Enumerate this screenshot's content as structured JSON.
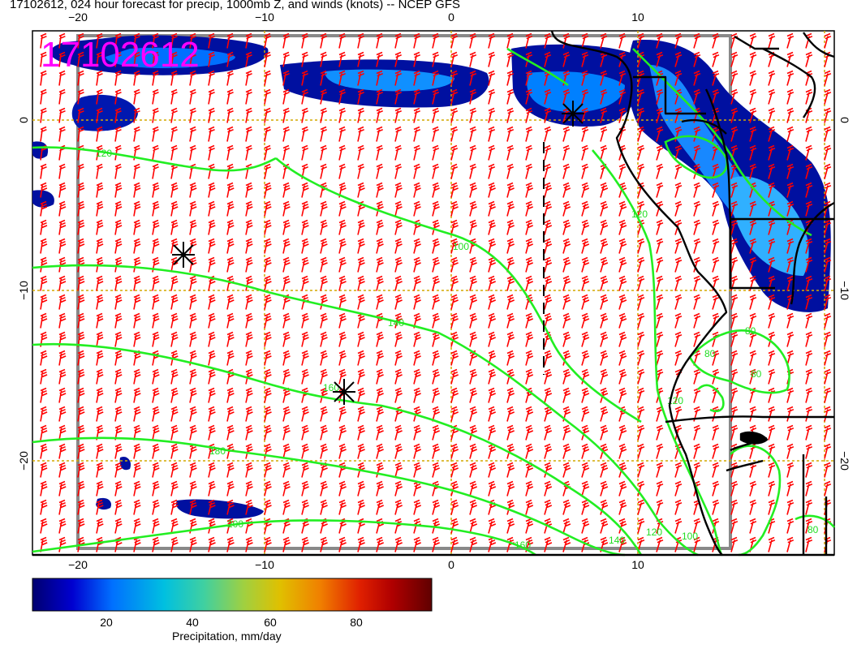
{
  "title": "17102612, 024 hour forecast for precip, 1000mb Z, and winds (knots) -- NCEP GFS",
  "stamp": "17102612",
  "axes": {
    "x_ticks": [
      "−20",
      "−10",
      "0",
      "10"
    ],
    "y_ticks": [
      "0",
      "−10",
      "−20"
    ]
  },
  "contour_labels": [
    "120",
    "100",
    "120",
    "140",
    "160",
    "180",
    "200",
    "160",
    "140",
    "120",
    "100",
    "120",
    "80",
    "80",
    "80",
    "80"
  ],
  "colorbar": {
    "label": "Precipitation, mm/day",
    "ticks": [
      "20",
      "40",
      "60",
      "80"
    ],
    "tick_values": [
      20,
      40,
      60,
      80
    ],
    "range": [
      3,
      96
    ],
    "colors": [
      "#000070",
      "#0000d0",
      "#0070ff",
      "#00c0e0",
      "#40d0a0",
      "#a0d040",
      "#e0c000",
      "#f08000",
      "#e02000",
      "#b00000",
      "#600000"
    ]
  },
  "colors": {
    "wind_barbs": "#ff0000",
    "contours": "#22ee22",
    "gridlines": "#d4a800",
    "coastline": "#000000",
    "stamp": "#ff00ff"
  },
  "icons": [
    "storm-center-icon",
    "storm-center-icon",
    "storm-center-icon"
  ]
}
